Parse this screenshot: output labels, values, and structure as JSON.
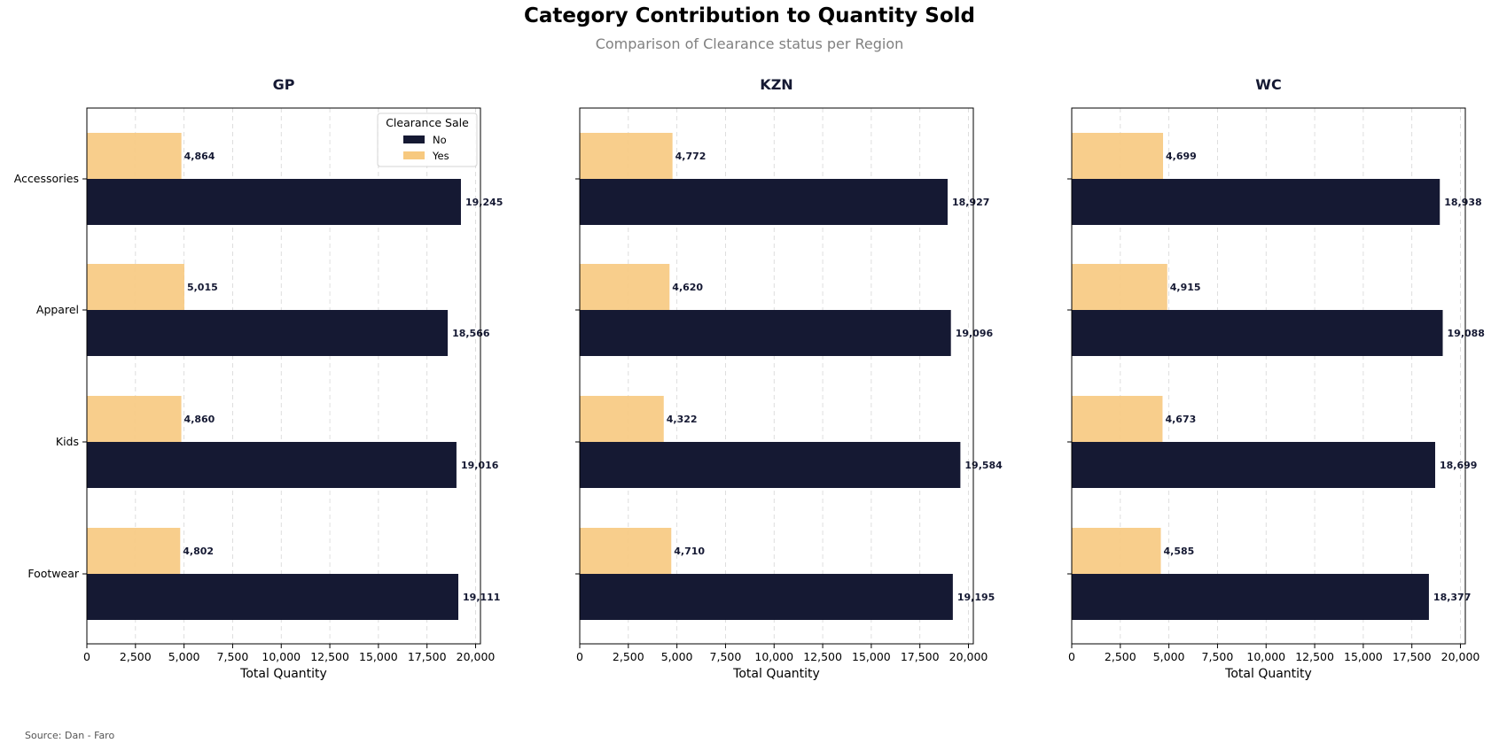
{
  "chart_data": {
    "type": "bar",
    "orientation": "horizontal",
    "title": "Category Contribution to Quantity Sold",
    "subtitle": "Comparison of Clearance status per Region",
    "source": "Source: Dan - Faro",
    "xlabel": "Total Quantity",
    "xlim": [
      0,
      20250
    ],
    "xticks": [
      "0",
      "2,500",
      "5,000",
      "7,500",
      "10,000",
      "12,500",
      "15,000",
      "17,500",
      "20,000"
    ],
    "xtick_values": [
      0,
      2500,
      5000,
      7500,
      10000,
      12500,
      15000,
      17500,
      20000
    ],
    "grid": "x-dashed",
    "categories": [
      "Accessories",
      "Apparel",
      "Kids",
      "Footwear"
    ],
    "legend": {
      "title": "Clearance Sale",
      "placement": "top-right of first panel",
      "entries": [
        {
          "label": "No",
          "color": "#151933"
        },
        {
          "label": "Yes",
          "color": "#f7c97f"
        }
      ]
    },
    "panels": [
      {
        "title": "GP",
        "series": [
          {
            "name": "Yes",
            "values": [
              4864,
              5015,
              4860,
              4802
            ],
            "labels": [
              "4,864",
              "5,015",
              "4,860",
              "4,802"
            ]
          },
          {
            "name": "No",
            "values": [
              19245,
              18566,
              19016,
              19111
            ],
            "labels": [
              "19,245",
              "18,566",
              "19,016",
              "19,111"
            ]
          }
        ]
      },
      {
        "title": "KZN",
        "series": [
          {
            "name": "Yes",
            "values": [
              4772,
              4620,
              4322,
              4710
            ],
            "labels": [
              "4,772",
              "4,620",
              "4,322",
              "4,710"
            ]
          },
          {
            "name": "No",
            "values": [
              18927,
              19096,
              19584,
              19195
            ],
            "labels": [
              "18,927",
              "19,096",
              "19,584",
              "19,195"
            ]
          }
        ]
      },
      {
        "title": "WC",
        "series": [
          {
            "name": "Yes",
            "values": [
              4699,
              4915,
              4673,
              4585
            ],
            "labels": [
              "4,699",
              "4,915",
              "4,673",
              "4,585"
            ]
          },
          {
            "name": "No",
            "values": [
              18938,
              19088,
              18699,
              18377
            ],
            "labels": [
              "18,938",
              "19,088",
              "18,699",
              "18,377"
            ]
          }
        ]
      }
    ]
  }
}
